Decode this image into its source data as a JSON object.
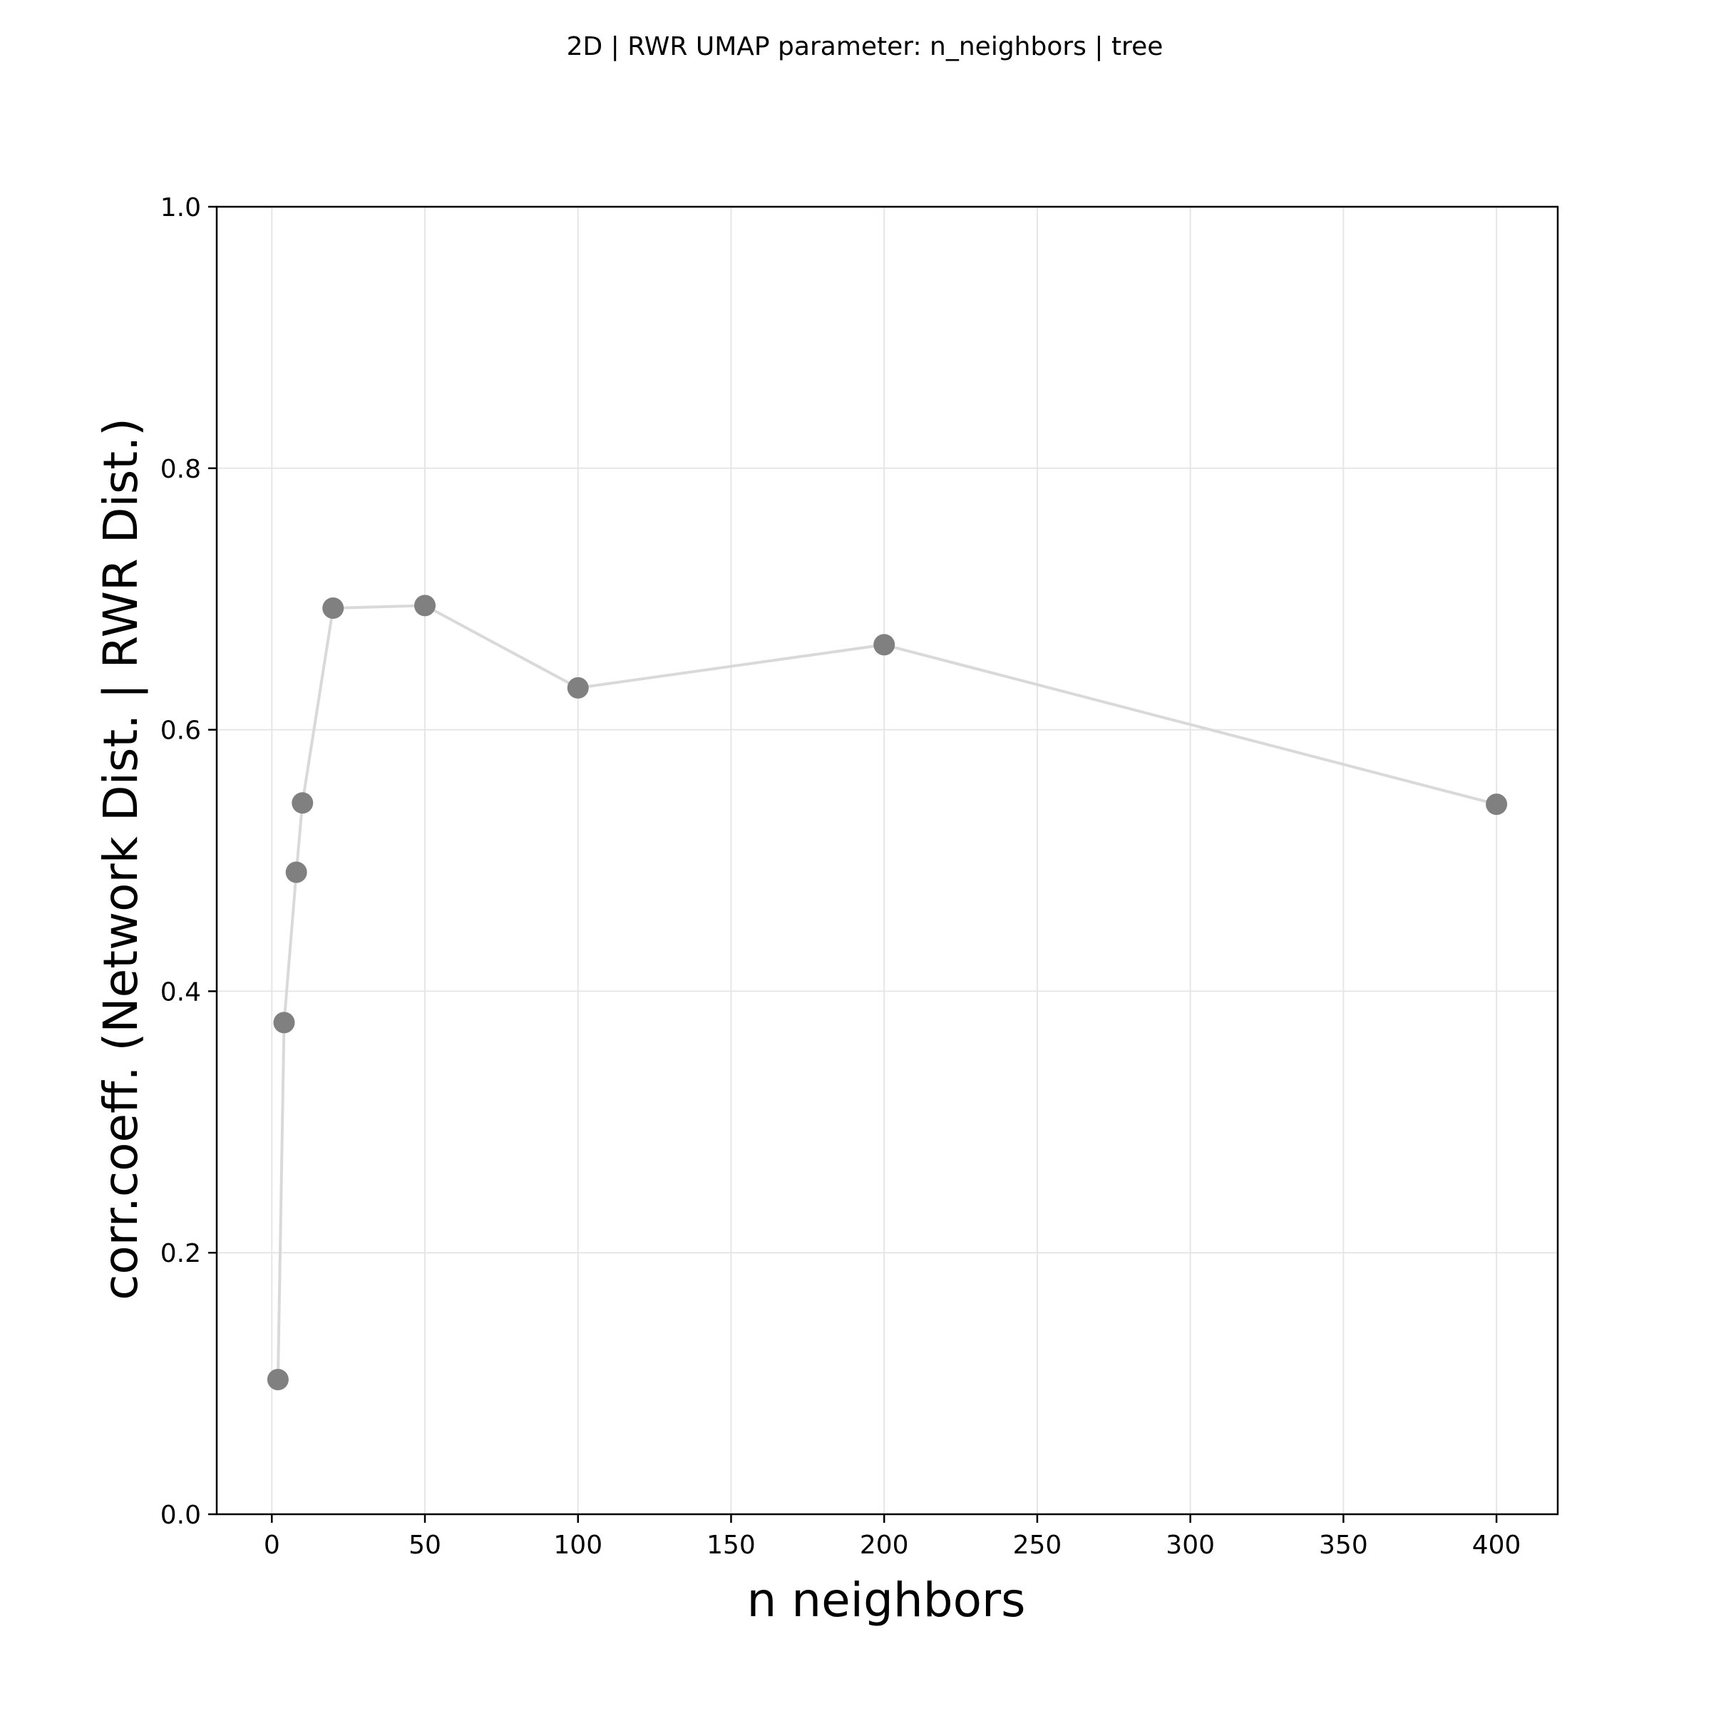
{
  "chart_data": {
    "type": "line",
    "title": "2D | RWR UMAP parameter: n_neighbors | tree",
    "xlabel": "n neighbors",
    "ylabel": "corr.coeff. (Network Dist. | RWR Dist.)",
    "xlim": [
      -18,
      420
    ],
    "ylim": [
      0.0,
      1.0
    ],
    "x_ticks": [
      0,
      50,
      100,
      150,
      200,
      250,
      300,
      350,
      400
    ],
    "y_ticks": [
      0.0,
      0.2,
      0.4,
      0.6,
      0.8,
      1.0
    ],
    "x_tick_labels": [
      "0",
      "50",
      "100",
      "150",
      "200",
      "250",
      "300",
      "350",
      "400"
    ],
    "y_tick_labels": [
      "0.0",
      "0.2",
      "0.4",
      "0.6",
      "0.8",
      "1.0"
    ],
    "grid": true,
    "series": [
      {
        "x": [
          2,
          4,
          8,
          10,
          20,
          50,
          100,
          200,
          400
        ],
        "y": [
          0.103,
          0.376,
          0.491,
          0.544,
          0.693,
          0.695,
          0.632,
          0.665,
          0.543
        ],
        "line_color": "#d9d9d9",
        "marker_color": "#808080"
      }
    ]
  }
}
